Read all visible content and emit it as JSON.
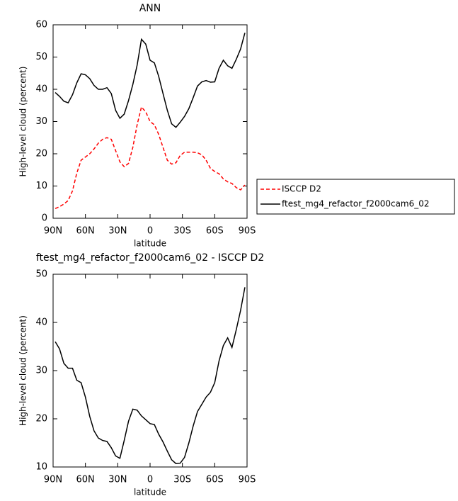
{
  "chart_data": [
    {
      "type": "line",
      "title": "ANN",
      "xlabel": "latitude",
      "ylabel": "High-level cloud (percent)",
      "x": [
        88,
        84,
        80,
        76,
        72,
        68,
        64,
        60,
        56,
        52,
        48,
        44,
        40,
        36,
        32,
        28,
        24,
        20,
        16,
        12,
        8,
        4,
        0,
        -4,
        -8,
        -12,
        -16,
        -20,
        -24,
        -28,
        -32,
        -36,
        -40,
        -44,
        -48,
        -52,
        -56,
        -60,
        -64,
        -68,
        -72,
        -76,
        -80,
        -84,
        -88
      ],
      "series": [
        {
          "name": "ISCCP D2",
          "color": "#ff0000",
          "linestyle": "dashed",
          "values": [
            3,
            3.6,
            4.4,
            5.5,
            8.5,
            14,
            18,
            19,
            20,
            21.5,
            23.3,
            24.5,
            25,
            24.5,
            21,
            17.5,
            16,
            17,
            22,
            29,
            34.5,
            33,
            30,
            29,
            26,
            22,
            18,
            16.8,
            17.2,
            19.5,
            20.5,
            20.5,
            20.5,
            20.3,
            19.7,
            18,
            15.5,
            14.5,
            13.8,
            12.2,
            11.3,
            10.8,
            9.5,
            8.8,
            10.3
          ]
        },
        {
          "name": "ftest_mg4_refactor_f2000cam6_02",
          "color": "#000000",
          "linestyle": "solid",
          "values": [
            39,
            37.8,
            36.3,
            35.8,
            38.3,
            42,
            44.8,
            44.5,
            43.3,
            41.2,
            40,
            40,
            40.5,
            38.7,
            33.5,
            31,
            32.3,
            36.5,
            41.5,
            47.5,
            55.5,
            54,
            49,
            48.2,
            44,
            38.7,
            33.5,
            29.3,
            28.2,
            29.8,
            31.6,
            34,
            37.4,
            41,
            42.3,
            42.7,
            42.2,
            42.3,
            46.5,
            49,
            47.3,
            46.5,
            49.3,
            52.5,
            57.5
          ]
        }
      ],
      "xlim": [
        90,
        -90
      ],
      "xticks": [
        {
          "value": 90,
          "label": "90N"
        },
        {
          "value": 60,
          "label": "60N"
        },
        {
          "value": 30,
          "label": "30N"
        },
        0,
        {
          "value": -30,
          "label": "30S"
        },
        {
          "value": -60,
          "label": "60S"
        },
        {
          "value": -90,
          "label": "90S"
        }
      ],
      "ylim": [
        0,
        60
      ],
      "yticks": [
        0,
        10,
        20,
        30,
        40,
        50,
        60
      ],
      "legend": "right"
    },
    {
      "type": "line",
      "title": "ftest_mg4_refactor_f2000cam6_02 - ISCCP D2",
      "xlabel": "latitude",
      "ylabel": "High-level cloud (percent)",
      "x": [
        88,
        84,
        80,
        76,
        72,
        68,
        64,
        60,
        56,
        52,
        48,
        44,
        40,
        36,
        32,
        28,
        24,
        20,
        16,
        12,
        8,
        4,
        0,
        -4,
        -8,
        -12,
        -16,
        -20,
        -24,
        -28,
        -32,
        -36,
        -40,
        -44,
        -48,
        -52,
        -56,
        -60,
        -64,
        -68,
        -72,
        -76,
        -80,
        -84,
        -88
      ],
      "values": [
        36,
        34.5,
        31.5,
        30.5,
        30.5,
        28,
        27.5,
        24.5,
        20.5,
        17.5,
        16,
        15.5,
        15.3,
        14,
        12.3,
        11.8,
        15.5,
        19.5,
        22,
        21.8,
        20.6,
        19.8,
        19,
        18.8,
        16.8,
        15.2,
        13.3,
        11.5,
        10.7,
        10.8,
        12,
        15,
        18.5,
        21.5,
        23,
        24.5,
        25.5,
        27.5,
        32,
        35.2,
        36.8,
        34.8,
        38.5,
        42.5,
        47.3
      ],
      "color": "#000000",
      "xlim": [
        90,
        -90
      ],
      "xticks": [
        {
          "value": 90,
          "label": "90N"
        },
        {
          "value": 60,
          "label": "60N"
        },
        {
          "value": 30,
          "label": "30N"
        },
        0,
        {
          "value": -30,
          "label": "30S"
        },
        {
          "value": -60,
          "label": "60S"
        },
        {
          "value": -90,
          "label": "90S"
        }
      ],
      "ylim": [
        10,
        50
      ],
      "yticks": [
        10,
        20,
        30,
        40,
        50
      ]
    }
  ]
}
